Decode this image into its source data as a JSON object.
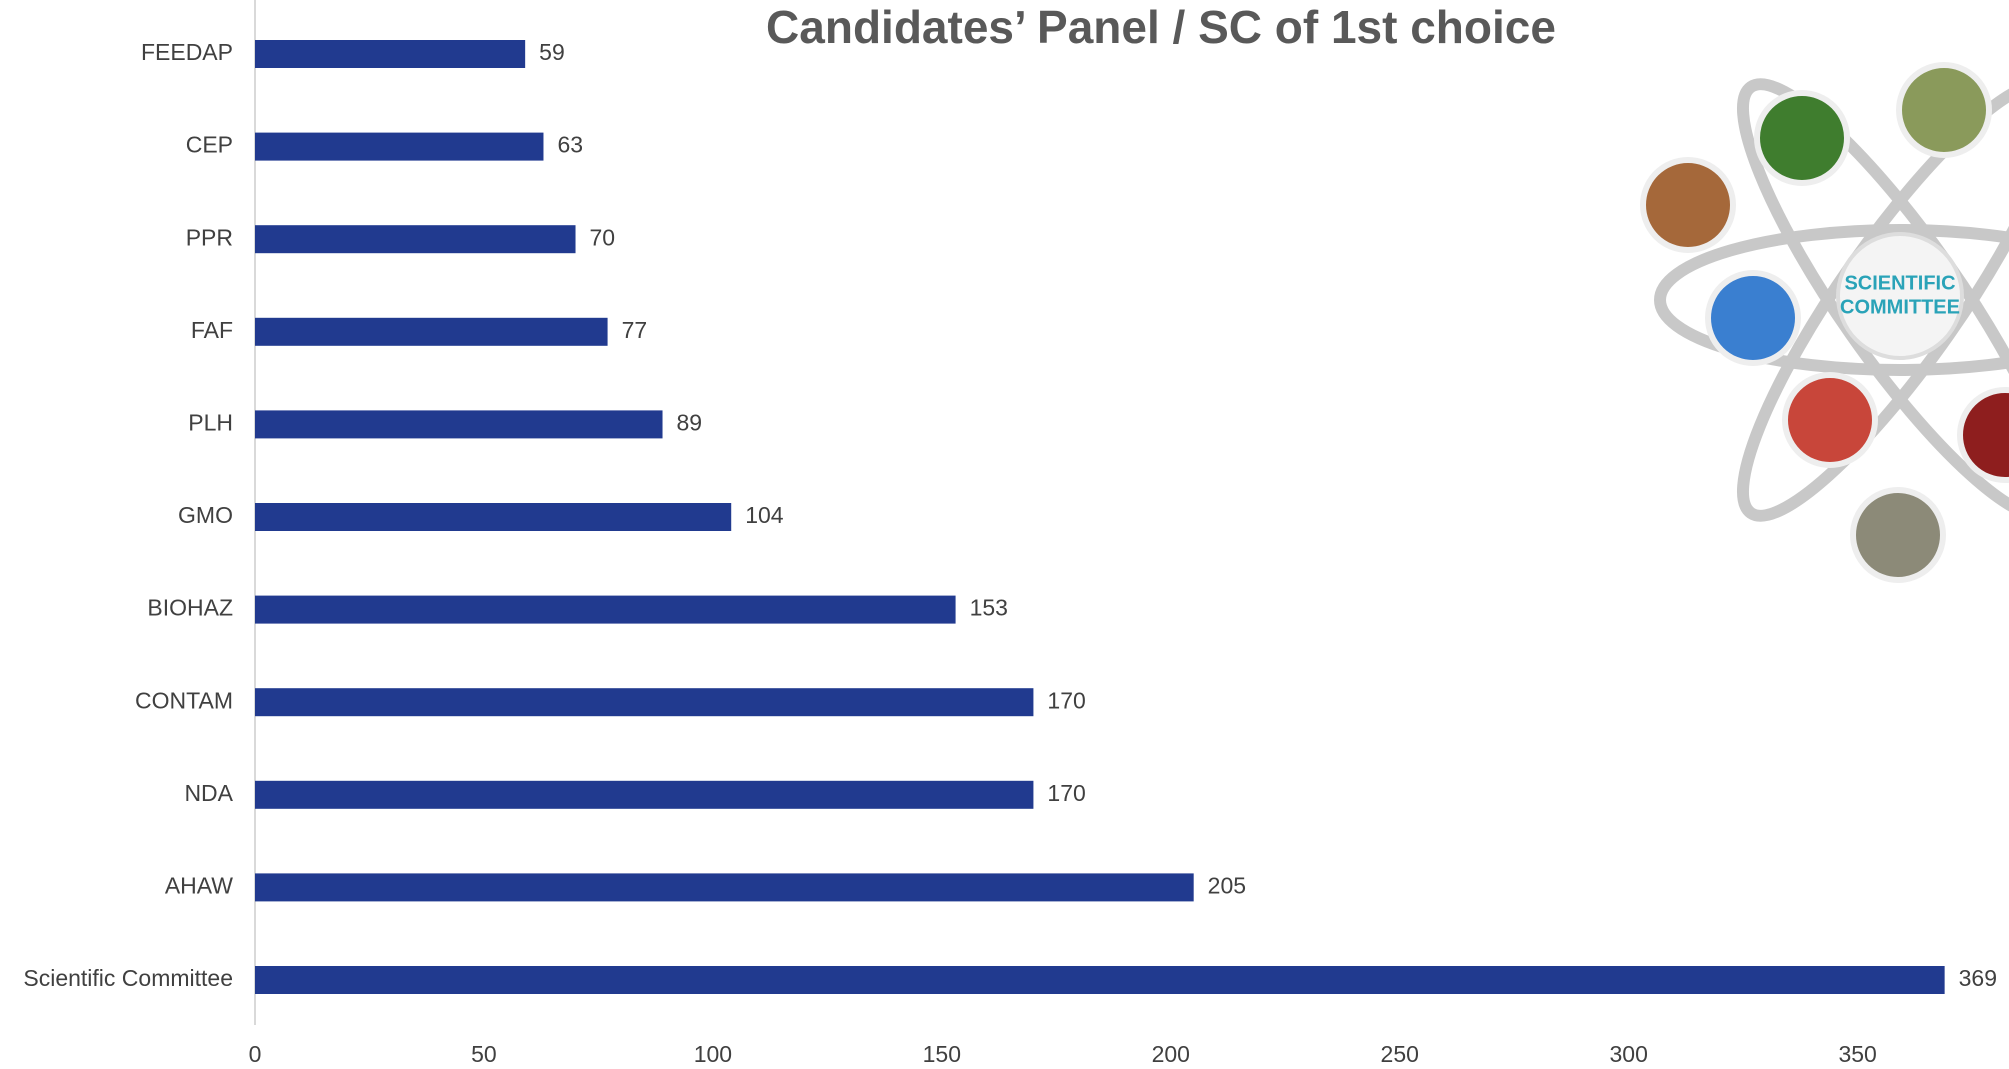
{
  "chart_data": {
    "type": "hbar",
    "title": "Candidates’ Panel / SC of 1st choice",
    "categories": [
      "FEEDAP",
      "CEP",
      "PPR",
      "FAF",
      "PLH",
      "GMO",
      "BIOHAZ",
      "CONTAM",
      "NDA",
      "AHAW",
      "Scientific Committee"
    ],
    "values": [
      59,
      63,
      70,
      77,
      89,
      104,
      153,
      170,
      170,
      205,
      369
    ],
    "color": "#213a8f",
    "xlim": [
      0,
      380
    ],
    "xticks": [
      0,
      50,
      100,
      150,
      200,
      250,
      300,
      350
    ],
    "annotations": [
      "SCIENTIFIC",
      "COMMITTEE"
    ]
  }
}
